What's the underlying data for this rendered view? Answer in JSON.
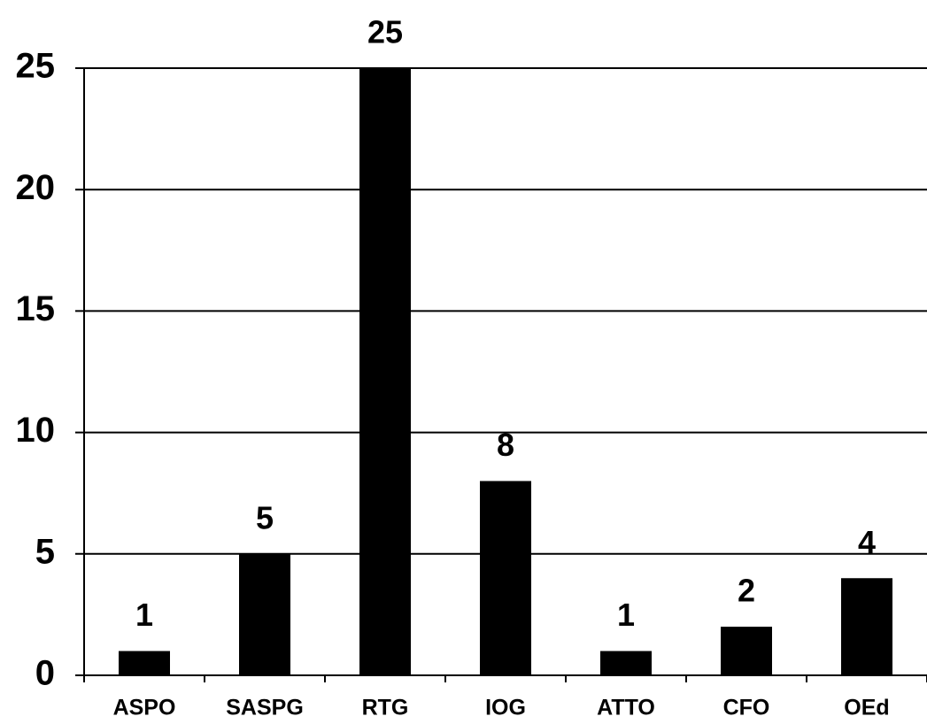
{
  "chart_data": {
    "type": "bar",
    "categories": [
      "ASPO",
      "SASPG",
      "RTG",
      "IOG",
      "ATTO",
      "CFO",
      "OEd"
    ],
    "values": [
      1,
      5,
      25,
      8,
      1,
      2,
      4
    ],
    "color": "#000000",
    "ylim": [
      0,
      25
    ],
    "yticks": [
      0,
      5,
      10,
      15,
      20,
      25
    ],
    "grid": true
  }
}
